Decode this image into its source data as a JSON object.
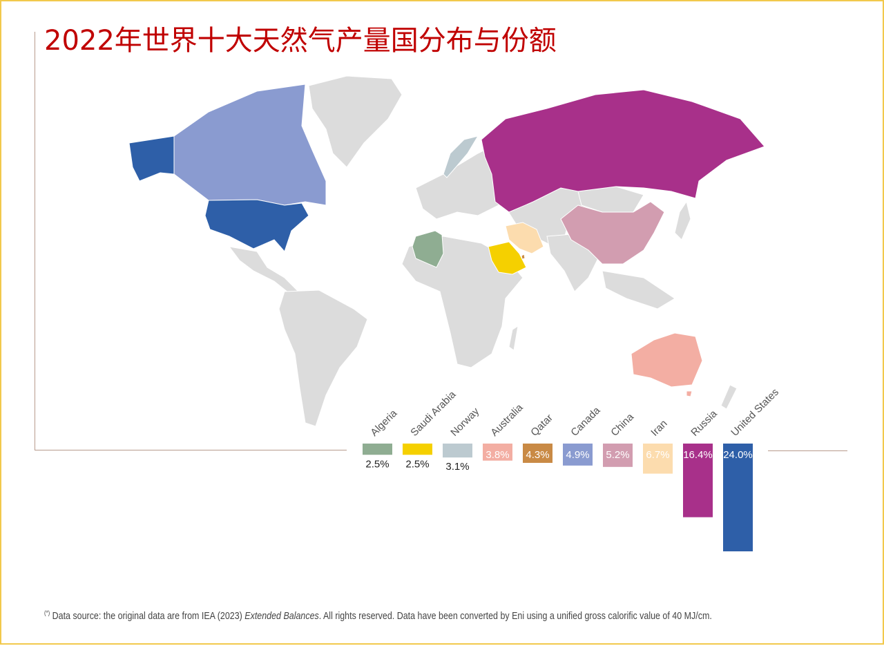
{
  "title": "2022年世界十大天然气产量国分布与份额",
  "footnote": {
    "mark": "(*)",
    "before": " Data source: the original data are from IEA (2023) ",
    "italic": "Extended Balances",
    "after": ". All rights reserved. Data have been converted by Eni using a unified gross calorific value of 40 MJ/cm."
  },
  "chart_data": {
    "type": "bar",
    "orientation": "vertical-downward",
    "categories": [
      "Algeria",
      "Saudi Arabia",
      "Norway",
      "Australia",
      "Qatar",
      "Canada",
      "China",
      "Iran",
      "Russia",
      "United States"
    ],
    "values": [
      2.5,
      2.5,
      3.1,
      3.8,
      4.3,
      4.9,
      5.2,
      6.7,
      16.4,
      24.0
    ],
    "value_labels": [
      "2.5%",
      "2.5%",
      "3.1%",
      "3.8%",
      "4.3%",
      "4.9%",
      "5.2%",
      "6.7%",
      "16.4%",
      "24.0%"
    ],
    "unit": "%",
    "colors": [
      "#8fad92",
      "#f5d000",
      "#bccad0",
      "#f3aea3",
      "#c98a45",
      "#8a9bd0",
      "#d29db0",
      "#fcdcae",
      "#a8308a",
      "#2e5fa8"
    ],
    "label_colors": [
      "#222222",
      "#222222",
      "#222222",
      "#ffffff",
      "#ffffff",
      "#ffffff",
      "#ffffff",
      "#ffffff",
      "#ffffff",
      "#ffffff"
    ],
    "map_highlights": {
      "United States": "#2e5fa8",
      "Russia": "#a8308a",
      "Iran": "#fcdcae",
      "China": "#d29db0",
      "Canada": "#8a9bd0",
      "Qatar": "#c98a45",
      "Australia": "#f3aea3",
      "Norway": "#bccad0",
      "Saudi Arabia": "#f5d000",
      "Algeria": "#8fad92"
    },
    "map_base_color": "#dcdcdc"
  }
}
